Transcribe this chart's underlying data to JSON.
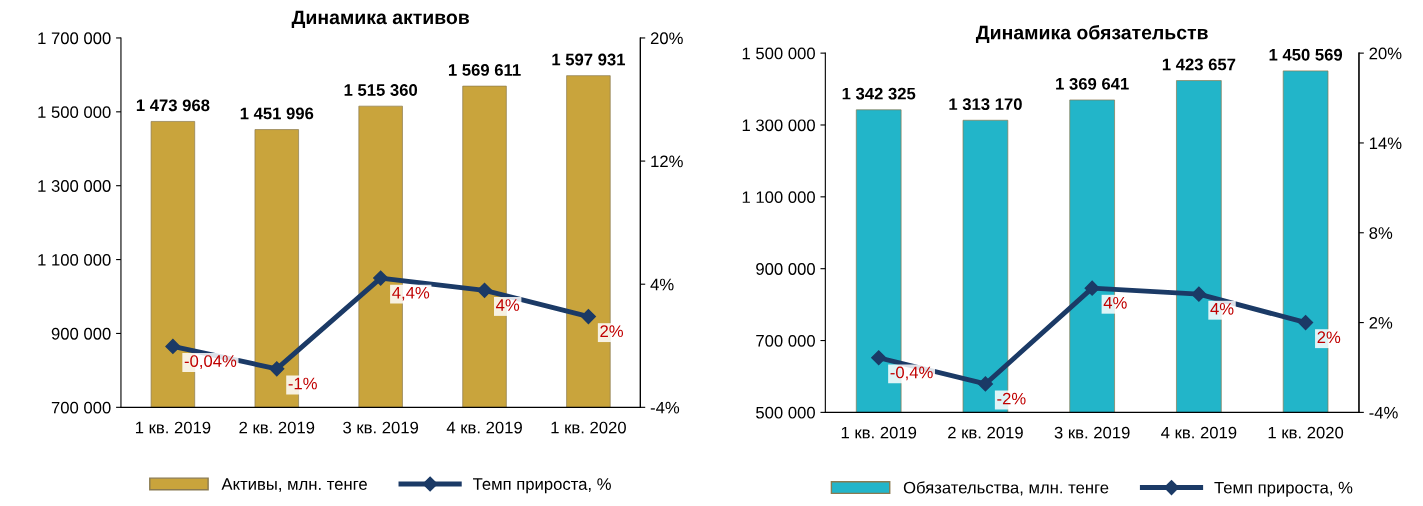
{
  "chart_data": [
    {
      "type": "bar",
      "title": "Динамика активов",
      "categories": [
        "1 кв. 2019",
        "2 кв. 2019",
        "3 кв. 2019",
        "4 кв. 2019",
        "1 кв. 2020"
      ],
      "series": [
        {
          "name": "Активы, млн. тенге",
          "color": "#c9a43c",
          "values": [
            1473968,
            1451996,
            1515360,
            1569611,
            1597931
          ],
          "value_labels": [
            "1 473 968",
            "1 451 996",
            "1 515 360",
            "1 569 611",
            "1 597 931"
          ]
        },
        {
          "name": "Темп прироста, %",
          "type": "line",
          "axis": "y2",
          "color": "#1b3a66",
          "marker": "diamond",
          "values": [
            -0.04,
            -1.5,
            4.4,
            3.6,
            1.9
          ],
          "value_labels": [
            "-0,04%",
            "-1%",
            "4,4%",
            "4%",
            "2%"
          ]
        }
      ],
      "ylim": [
        700000,
        1700000
      ],
      "yticks": [
        {
          "value": 700000,
          "label": "700 000"
        },
        {
          "value": 900000,
          "label": "900 000"
        },
        {
          "value": 1100000,
          "label": "1 100 000"
        },
        {
          "value": 1300000,
          "label": "1 300 000"
        },
        {
          "value": 1500000,
          "label": "1 500 000"
        },
        {
          "value": 1700000,
          "label": "1 700 000"
        }
      ],
      "y2lim": [
        -4,
        20
      ],
      "y2ticks": [
        {
          "value": -4,
          "label": "-4%"
        },
        {
          "value": 4,
          "label": "4%"
        },
        {
          "value": 12,
          "label": "12%"
        },
        {
          "value": 20,
          "label": "20%"
        }
      ],
      "legend": "bottom",
      "grid": false
    },
    {
      "type": "bar",
      "title": "Динамика обязательств",
      "categories": [
        "1 кв. 2019",
        "2 кв. 2019",
        "3 кв. 2019",
        "4 кв. 2019",
        "1 кв. 2020"
      ],
      "series": [
        {
          "name": "Обязательства, млн. тенге",
          "color": "#22b5c9",
          "values": [
            1342325,
            1313170,
            1369641,
            1423657,
            1450569
          ],
          "value_labels": [
            "1 342 325",
            "1 313 170",
            "1 369 641",
            "1 423 657",
            "1 450 569"
          ]
        },
        {
          "name": "Темп прироста, %",
          "type": "line",
          "axis": "y2",
          "color": "#1b3a66",
          "marker": "diamond",
          "values": [
            -0.35,
            -2.1,
            4.3,
            3.9,
            2.0
          ],
          "value_labels": [
            "-0,4%",
            "-2%",
            "4%",
            "4%",
            "2%"
          ]
        }
      ],
      "ylim": [
        500000,
        1500000
      ],
      "yticks": [
        {
          "value": 500000,
          "label": "500 000"
        },
        {
          "value": 700000,
          "label": "700 000"
        },
        {
          "value": 900000,
          "label": "900 000"
        },
        {
          "value": 1100000,
          "label": "1 100 000"
        },
        {
          "value": 1300000,
          "label": "1 300 000"
        },
        {
          "value": 1500000,
          "label": "1 500 000"
        }
      ],
      "y2lim": [
        -4,
        20
      ],
      "y2ticks": [
        {
          "value": -4,
          "label": "-4%"
        },
        {
          "value": 2,
          "label": "2%"
        },
        {
          "value": 8,
          "label": "8%"
        },
        {
          "value": 14,
          "label": "14%"
        },
        {
          "value": 20,
          "label": "20%"
        }
      ],
      "legend": "bottom",
      "grid": false
    }
  ]
}
